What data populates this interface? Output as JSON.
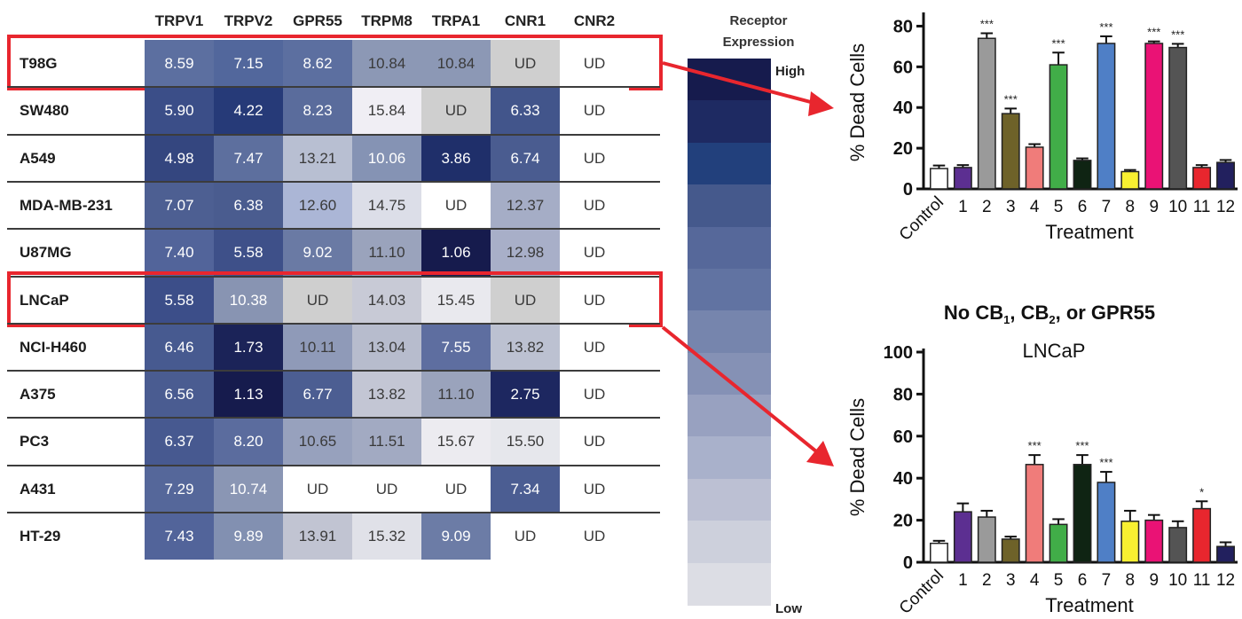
{
  "heatmap": {
    "columns": [
      "TRPV1",
      "TRPV2",
      "GPR55",
      "TRPM8",
      "TRPA1",
      "CNR1",
      "CNR2"
    ],
    "rows": [
      {
        "label": "T98G",
        "values": [
          "8.59",
          "7.15",
          "8.62",
          "10.84",
          "10.84",
          "UD",
          "UD"
        ],
        "colors": [
          "#5c6fa0",
          "#52679c",
          "#5c6fa0",
          "#8c98b5",
          "#8c98b5",
          "#cfcfcf",
          "#ffffff"
        ]
      },
      {
        "label": "SW480",
        "values": [
          "5.90",
          "4.22",
          "8.23",
          "15.84",
          "UD",
          "6.33",
          "UD"
        ],
        "colors": [
          "#3b4e88",
          "#263a78",
          "#5a6c9c",
          "#f0eef4",
          "#cfcfcf",
          "#42558b",
          "#ffffff"
        ]
      },
      {
        "label": "A549",
        "values": [
          "4.98",
          "7.47",
          "13.21",
          "10.06",
          "3.86",
          "6.74",
          "UD"
        ],
        "colors": [
          "#34467f",
          "#5d6f9e",
          "#b8bfd2",
          "#8593b4",
          "#1f2f6a",
          "#4a5c90",
          "#ffffff"
        ]
      },
      {
        "label": "MDA-MB-231",
        "values": [
          "7.07",
          "6.38",
          "12.60",
          "14.75",
          "UD",
          "12.37",
          "UD"
        ],
        "colors": [
          "#4d5f92",
          "#4a5c8f",
          "#abb6d6",
          "#dcdee8",
          "#ffffff",
          "#a5adc6",
          "#ffffff"
        ]
      },
      {
        "label": "U87MG",
        "values": [
          "7.40",
          "5.58",
          "9.02",
          "11.10",
          "1.06",
          "12.98",
          "UD"
        ],
        "colors": [
          "#52649a",
          "#3e5089",
          "#6a7aa4",
          "#9aa3bc",
          "#161b4d",
          "#a8afc8",
          "#ffffff"
        ]
      },
      {
        "label": "LNCaP",
        "values": [
          "5.58",
          "10.38",
          "UD",
          "14.03",
          "15.45",
          "UD",
          "UD"
        ],
        "colors": [
          "#3c4e89",
          "#8894b2",
          "#cfcfcf",
          "#c8cad6",
          "#e9e9ee",
          "#cfcfcf",
          "#ffffff"
        ]
      },
      {
        "label": "NCI-H460",
        "values": [
          "6.46",
          "1.73",
          "10.11",
          "13.04",
          "7.55",
          "13.82",
          "UD"
        ],
        "colors": [
          "#475a90",
          "#1b2358",
          "#8f9ab8",
          "#b7bccd",
          "#5e6ea0",
          "#bcc1d1",
          "#ffffff"
        ]
      },
      {
        "label": "A375",
        "values": [
          "6.56",
          "1.13",
          "6.77",
          "13.82",
          "11.10",
          "2.75",
          "UD"
        ],
        "colors": [
          "#4a5c91",
          "#161b4d",
          "#4c5e92",
          "#c3c6d4",
          "#9aa3bc",
          "#1d2760",
          "#ffffff"
        ]
      },
      {
        "label": "PC3",
        "values": [
          "6.37",
          "8.20",
          "10.65",
          "11.51",
          "15.67",
          "15.50",
          "UD"
        ],
        "colors": [
          "#475990",
          "#5b6c9e",
          "#97a1bd",
          "#a2aac2",
          "#ecebf0",
          "#e6e7ec",
          "#ffffff"
        ]
      },
      {
        "label": "A431",
        "values": [
          "7.29",
          "10.74",
          "UD",
          "UD",
          "UD",
          "7.34",
          "UD"
        ],
        "colors": [
          "#55679a",
          "#8a96b4",
          "#ffffff",
          "#ffffff",
          "#ffffff",
          "#4b5d92",
          "#ffffff"
        ]
      },
      {
        "label": "HT-29",
        "values": [
          "7.43",
          "9.89",
          "13.91",
          "15.32",
          "9.09",
          "UD",
          "UD"
        ],
        "colors": [
          "#52649a",
          "#8290b1",
          "#c1c4d2",
          "#e0e1e8",
          "#6c7ca6",
          "#ffffff",
          "#ffffff"
        ]
      }
    ],
    "highlighted_rows": [
      "T98G",
      "LNCaP"
    ],
    "highlight_color": "#e8262e"
  },
  "legend": {
    "title_line1": "Receptor",
    "title_line2": "Expression",
    "high_label": "High",
    "low_label": "Low",
    "gradient": [
      "#161b4d",
      "#1e2a62",
      "#22407c",
      "#45598c",
      "#56689a",
      "#6173a2",
      "#7685ad",
      "#8591b5",
      "#98a1c0",
      "#a9b1cb",
      "#bcc0d3",
      "#cdd0dc",
      "#dcdde4"
    ]
  },
  "chart_data": [
    {
      "type": "bar",
      "title": "",
      "subtitle": "",
      "xlabel": "Treatment",
      "ylabel": "% Dead Cells",
      "ylim": [
        0,
        85
      ],
      "yticks": [
        0,
        20,
        40,
        60,
        80
      ],
      "categories": [
        "Control",
        "1",
        "2",
        "3",
        "4",
        "5",
        "6",
        "7",
        "8",
        "9",
        "10",
        "11",
        "12"
      ],
      "values": [
        10,
        10.5,
        74,
        37,
        20.5,
        61,
        14,
        71.5,
        8.5,
        71.5,
        69.5,
        10.5,
        13
      ],
      "errors": [
        1.5,
        1.2,
        2.5,
        2.5,
        1.5,
        6,
        1,
        3.5,
        0.8,
        1,
        1.8,
        1.2,
        1.2
      ],
      "significance": [
        "",
        "",
        "***",
        "***",
        "",
        "***",
        "",
        "***",
        "",
        "***",
        "***",
        "",
        ""
      ],
      "colors": [
        "#ffffff",
        "#5c2f91",
        "#9a9a9a",
        "#6e6229",
        "#f07c7a",
        "#41ad48",
        "#0f2413",
        "#4f7fc6",
        "#f8f031",
        "#ea1275",
        "#545454",
        "#e8262e",
        "#22205e"
      ]
    },
    {
      "type": "bar",
      "title": "No CB1, CB2, or GPR55",
      "subtitle": "LNCaP",
      "xlabel": "Treatment",
      "ylabel": "% Dead Cells",
      "ylim": [
        0,
        100
      ],
      "yticks": [
        0,
        20,
        40,
        60,
        80,
        100
      ],
      "categories": [
        "Control",
        "1",
        "2",
        "3",
        "4",
        "5",
        "6",
        "7",
        "8",
        "9",
        "10",
        "11",
        "12"
      ],
      "values": [
        9,
        24,
        21.5,
        11,
        46.5,
        18,
        46.5,
        38,
        19.5,
        20,
        16.5,
        25.5,
        7.5
      ],
      "errors": [
        1.2,
        4,
        3,
        1.2,
        4.5,
        2.5,
        4.5,
        5,
        5,
        2.5,
        3,
        3.5,
        2
      ],
      "significance": [
        "",
        "",
        "",
        "",
        "***",
        "",
        "***",
        "***",
        "",
        "",
        "",
        "*",
        ""
      ],
      "colors": [
        "#ffffff",
        "#5c2f91",
        "#9a9a9a",
        "#6e6229",
        "#f07c7a",
        "#41ad48",
        "#0f2413",
        "#4f7fc6",
        "#f8f031",
        "#ea1275",
        "#545454",
        "#e8262e",
        "#22205e"
      ]
    }
  ]
}
